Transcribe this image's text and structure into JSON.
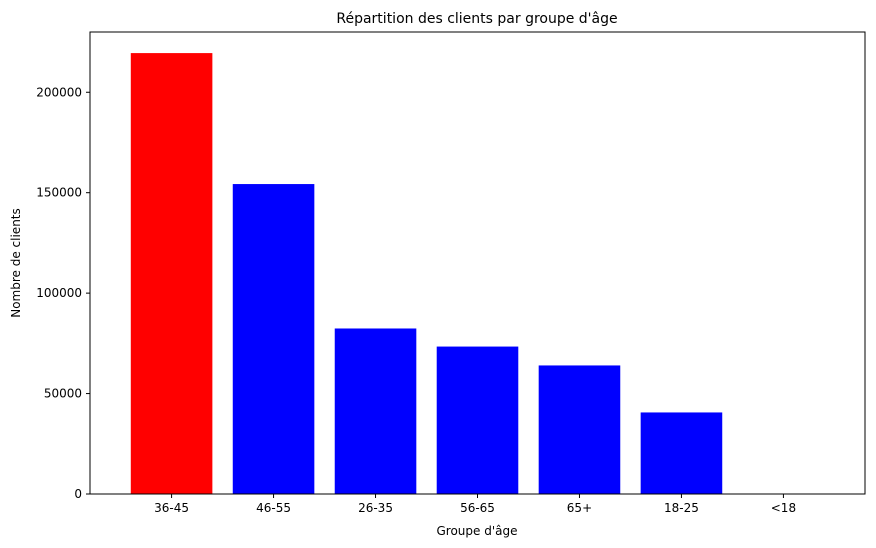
{
  "chart_data": {
    "type": "bar",
    "title": "Répartition des clients par groupe d'âge",
    "xlabel": "Groupe d'âge",
    "ylabel": "Nombre de clients",
    "categories": [
      "36-45",
      "46-55",
      "26-35",
      "56-65",
      "65+",
      "18-25",
      "<18"
    ],
    "values": [
      219500,
      154300,
      82400,
      73400,
      64000,
      40600,
      200
    ],
    "bar_colors": [
      "#ff0000",
      "#0000ff",
      "#0000ff",
      "#0000ff",
      "#0000ff",
      "#0000ff",
      "#0000ff"
    ],
    "ylim": [
      0,
      230000
    ],
    "yticks": [
      0,
      50000,
      100000,
      150000,
      200000
    ],
    "grid": false,
    "legend": "none"
  }
}
